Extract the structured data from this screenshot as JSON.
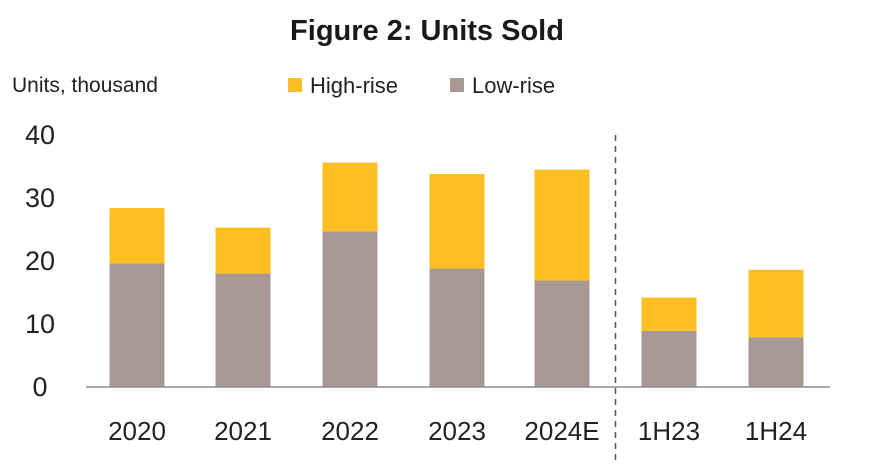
{
  "chart_data": {
    "type": "bar",
    "stacked": true,
    "title": "Figure 2: Units Sold",
    "ylabel": "Units, thousand",
    "xlabel": "",
    "ylim": [
      0,
      40
    ],
    "yticks": [
      0,
      10,
      20,
      30,
      40
    ],
    "categories": [
      "2020",
      "2021",
      "2022",
      "2023",
      "2024E",
      "1H23",
      "1H24"
    ],
    "series": [
      {
        "name": "Low-rise",
        "color": "#A89795",
        "values": [
          19.6,
          18.0,
          24.7,
          18.8,
          16.9,
          8.9,
          7.9
        ]
      },
      {
        "name": "High-rise",
        "color": "#FDBE21",
        "values": [
          8.8,
          7.3,
          10.9,
          15.0,
          17.6,
          5.3,
          10.7
        ]
      }
    ],
    "legend_order": [
      "High-rise",
      "Low-rise"
    ],
    "legend_position": "top",
    "divider_after_category": "2024E",
    "grid": false
  }
}
